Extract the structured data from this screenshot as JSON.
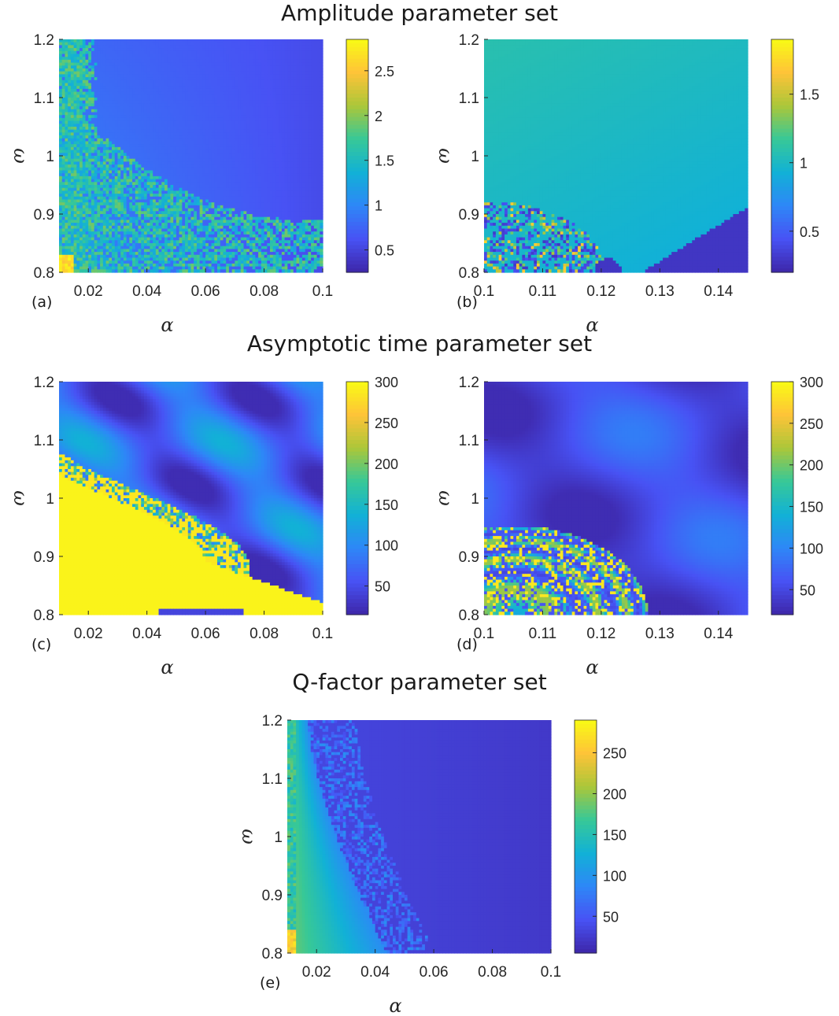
{
  "section_titles": {
    "amplitude": "Amplitude parameter set",
    "asymptotic": "Asymptotic time parameter set",
    "qfactor": "Q-factor parameter set"
  },
  "chart_data": [
    {
      "id": "a",
      "type": "heatmap",
      "panel_label": "(a)",
      "xlabel": "α",
      "ylabel": "ω",
      "xlim": [
        0.01,
        0.1
      ],
      "ylim": [
        0.8,
        1.2
      ],
      "xticks": [
        {
          "v": 0.02,
          "t": "0.02"
        },
        {
          "v": 0.04,
          "t": "0.04"
        },
        {
          "v": 0.06,
          "t": "0.06"
        },
        {
          "v": 0.08,
          "t": "0.08"
        },
        {
          "v": 0.1,
          "t": "0.1"
        }
      ],
      "yticks": [
        {
          "v": 0.8,
          "t": "0.8"
        },
        {
          "v": 0.9,
          "t": "0.9"
        },
        {
          "v": 1.0,
          "t": "1"
        },
        {
          "v": 1.1,
          "t": "1.1"
        },
        {
          "v": 1.2,
          "t": "1.2"
        }
      ],
      "colorbar": {
        "min": 0.25,
        "max": 2.85,
        "ticks": [
          {
            "v": 0.5,
            "t": "0.5"
          },
          {
            "v": 1.0,
            "t": "1"
          },
          {
            "v": 1.5,
            "t": "1.5"
          },
          {
            "v": 2.0,
            "t": "2"
          },
          {
            "v": 2.5,
            "t": "2.5"
          }
        ]
      },
      "colormap": "parula"
    },
    {
      "id": "b",
      "type": "heatmap",
      "panel_label": "(b)",
      "xlabel": "α",
      "ylabel": "ω",
      "xlim": [
        0.1,
        0.145
      ],
      "ylim": [
        0.8,
        1.2
      ],
      "xticks": [
        {
          "v": 0.1,
          "t": "0.1"
        },
        {
          "v": 0.11,
          "t": "0.11"
        },
        {
          "v": 0.12,
          "t": "0.12"
        },
        {
          "v": 0.13,
          "t": "0.13"
        },
        {
          "v": 0.14,
          "t": "0.14"
        }
      ],
      "yticks": [
        {
          "v": 0.8,
          "t": "0.8"
        },
        {
          "v": 0.9,
          "t": "0.9"
        },
        {
          "v": 1.0,
          "t": "1"
        },
        {
          "v": 1.1,
          "t": "1.1"
        },
        {
          "v": 1.2,
          "t": "1.2"
        }
      ],
      "colorbar": {
        "min": 0.2,
        "max": 1.9,
        "ticks": [
          {
            "v": 0.5,
            "t": "0.5"
          },
          {
            "v": 1.0,
            "t": "1"
          },
          {
            "v": 1.5,
            "t": "1.5"
          }
        ]
      },
      "colormap": "parula"
    },
    {
      "id": "c",
      "type": "heatmap",
      "panel_label": "(c)",
      "xlabel": "α",
      "ylabel": "ω",
      "xlim": [
        0.01,
        0.1
      ],
      "ylim": [
        0.8,
        1.2
      ],
      "xticks": [
        {
          "v": 0.02,
          "t": "0.02"
        },
        {
          "v": 0.04,
          "t": "0.04"
        },
        {
          "v": 0.06,
          "t": "0.06"
        },
        {
          "v": 0.08,
          "t": "0.08"
        },
        {
          "v": 0.1,
          "t": "0.1"
        }
      ],
      "yticks": [
        {
          "v": 0.8,
          "t": "0.8"
        },
        {
          "v": 0.9,
          "t": "0.9"
        },
        {
          "v": 1.0,
          "t": "1"
        },
        {
          "v": 1.1,
          "t": "1.1"
        },
        {
          "v": 1.2,
          "t": "1.2"
        }
      ],
      "colorbar": {
        "min": 15,
        "max": 300,
        "ticks": [
          {
            "v": 50,
            "t": "50"
          },
          {
            "v": 100,
            "t": "100"
          },
          {
            "v": 150,
            "t": "150"
          },
          {
            "v": 200,
            "t": "200"
          },
          {
            "v": 250,
            "t": "250"
          },
          {
            "v": 300,
            "t": "300"
          }
        ]
      },
      "colormap": "parula"
    },
    {
      "id": "d",
      "type": "heatmap",
      "panel_label": "(d)",
      "xlabel": "α",
      "ylabel": "ω",
      "xlim": [
        0.1,
        0.145
      ],
      "ylim": [
        0.8,
        1.2
      ],
      "xticks": [
        {
          "v": 0.1,
          "t": "0.1"
        },
        {
          "v": 0.11,
          "t": "0.11"
        },
        {
          "v": 0.12,
          "t": "0.12"
        },
        {
          "v": 0.13,
          "t": "0.13"
        },
        {
          "v": 0.14,
          "t": "0.14"
        }
      ],
      "yticks": [
        {
          "v": 0.8,
          "t": "0.8"
        },
        {
          "v": 0.9,
          "t": "0.9"
        },
        {
          "v": 1.0,
          "t": "1"
        },
        {
          "v": 1.1,
          "t": "1.1"
        },
        {
          "v": 1.2,
          "t": "1.2"
        }
      ],
      "colorbar": {
        "min": 20,
        "max": 300,
        "ticks": [
          {
            "v": 50,
            "t": "50"
          },
          {
            "v": 100,
            "t": "100"
          },
          {
            "v": 150,
            "t": "150"
          },
          {
            "v": 200,
            "t": "200"
          },
          {
            "v": 250,
            "t": "250"
          },
          {
            "v": 300,
            "t": "300"
          }
        ]
      },
      "colormap": "parula"
    },
    {
      "id": "e",
      "type": "heatmap",
      "panel_label": "(e)",
      "xlabel": "α",
      "ylabel": "ω",
      "xlim": [
        0.01,
        0.1
      ],
      "ylim": [
        0.8,
        1.2
      ],
      "xticks": [
        {
          "v": 0.02,
          "t": "0.02"
        },
        {
          "v": 0.04,
          "t": "0.04"
        },
        {
          "v": 0.06,
          "t": "0.06"
        },
        {
          "v": 0.08,
          "t": "0.08"
        },
        {
          "v": 0.1,
          "t": "0.1"
        }
      ],
      "yticks": [
        {
          "v": 0.8,
          "t": "0.8"
        },
        {
          "v": 0.9,
          "t": "0.9"
        },
        {
          "v": 1.0,
          "t": "1"
        },
        {
          "v": 1.1,
          "t": "1.1"
        },
        {
          "v": 1.2,
          "t": "1.2"
        }
      ],
      "colorbar": {
        "min": 5,
        "max": 290,
        "ticks": [
          {
            "v": 50,
            "t": "50"
          },
          {
            "v": 100,
            "t": "100"
          },
          {
            "v": 150,
            "t": "150"
          },
          {
            "v": 200,
            "t": "200"
          },
          {
            "v": 250,
            "t": "250"
          }
        ]
      },
      "colormap": "parula"
    }
  ]
}
